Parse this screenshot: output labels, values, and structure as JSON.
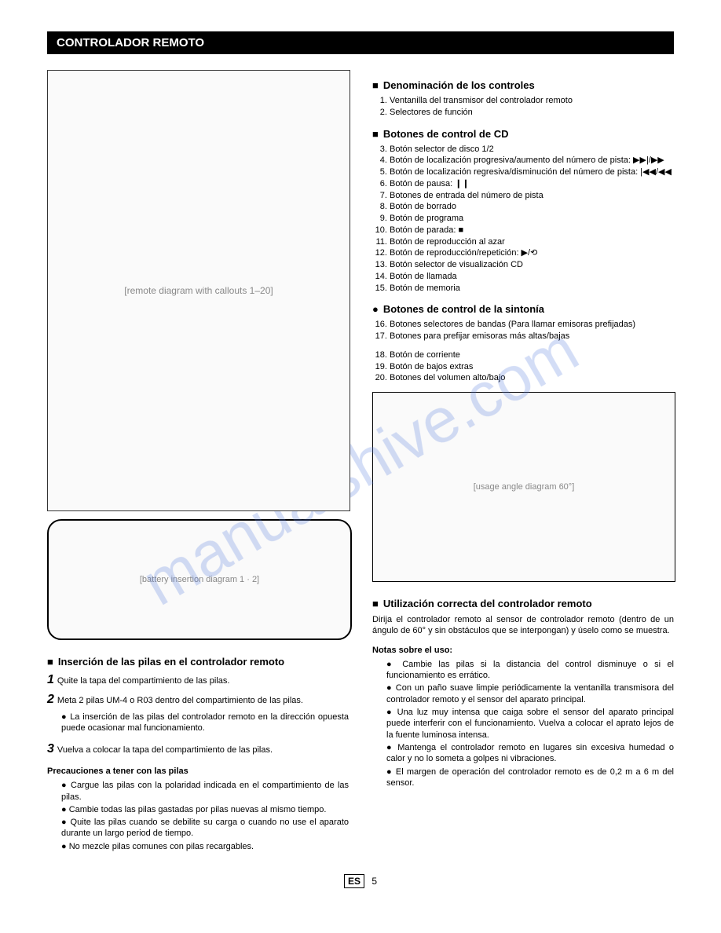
{
  "header": "CONTROLADOR REMOTO",
  "watermark": "manualshive.com",
  "section1": {
    "title": "Denominación de los controles",
    "items": [
      "Ventanilla del transmisor del controlador remoto",
      "Selectores de función"
    ]
  },
  "section2": {
    "title": "Botones de control de CD",
    "start": 3,
    "items": [
      "Botón selector de disco 1/2",
      "Botón de localización progresiva/aumento del número de pista: ▶▶|/▶▶",
      "Botón de localización regresiva/disminución del número de pista: |◀◀/◀◀",
      "Botón de pausa: ❙❙",
      "Botones de entrada del número de pista",
      "Botón de borrado",
      "Botón de programa",
      "Botón de parada: ■",
      "Botón de reproducción al azar",
      "Botón de reproducción/repetición: ▶/⟲",
      "Botón selector de visualización CD",
      "Botón de llamada",
      "Botón de memoria"
    ]
  },
  "section3": {
    "title": "Botones de control de la sintonía",
    "start": 16,
    "items": [
      "Botones selectores de bandas (Para llamar emisoras prefijadas)",
      "Botones para prefijar emisoras más altas/bajas"
    ],
    "extra_start": 18,
    "extras": [
      "Botón de corriente",
      "Botón de bajos extras",
      "Botones del volumen alto/bajo"
    ]
  },
  "battery": {
    "title": "Inserción de las pilas en el controlador remoto",
    "steps": [
      "Quite la tapa del compartimiento de las pilas.",
      "Meta 2 pilas UM-4 o R03 dentro del compartimiento de las pilas."
    ],
    "note": "La inserción de las pilas del controlador remoto en la dirección opuesta puede ocasionar mal funcionamiento.",
    "step3": "Vuelva a colocar la tapa del compartimiento de las pilas.",
    "precautions_title": "Precauciones a tener con las pilas",
    "precautions": [
      "Cargue las pilas con la polaridad indicada en el compartimiento de las pilas.",
      "Cambie todas las pilas gastadas por pilas nuevas al mismo tiempo.",
      "Quite las pilas cuando se debilite su carga o cuando no use el aparato durante un largo period de tiempo.",
      "No mezcle pilas comunes con pilas recargables."
    ]
  },
  "usage": {
    "title": "Utilización correcta del controlador remoto",
    "intro": "Dirija el controlador remoto al sensor de controlador remoto (dentro de un ángulo de 60° y sin obstáculos que se interpongan) y úselo como se muestra.",
    "notes_title": "Notas sobre el uso:",
    "notes": [
      "Cambie las pilas si la distancia del control disminuye o si el funcionamiento es errático.",
      "Con un paño suave limpie periódicamente la ventanilla transmisora del controlador remoto y el sensor del aparato principal.",
      "Una luz muy intensa que caiga sobre el sensor del aparato principal puede interferir con el funcionamiento. Vuelva a colocar el aprato lejos de la fuente luminosa intensa.",
      "Mantenga el controlador remoto en lugares sin excesiva humedad o calor y no lo someta a golpes ni vibraciones.",
      "El margen de operación del controlador remoto es de 0,2 m a 6 m del sensor."
    ]
  },
  "footer": {
    "lang": "ES",
    "page": "5"
  },
  "placeholders": {
    "remote": "[remote diagram with callouts 1–20]",
    "battery": "[battery insertion diagram 1 · 2]",
    "usage": "[usage angle diagram 60°]"
  }
}
